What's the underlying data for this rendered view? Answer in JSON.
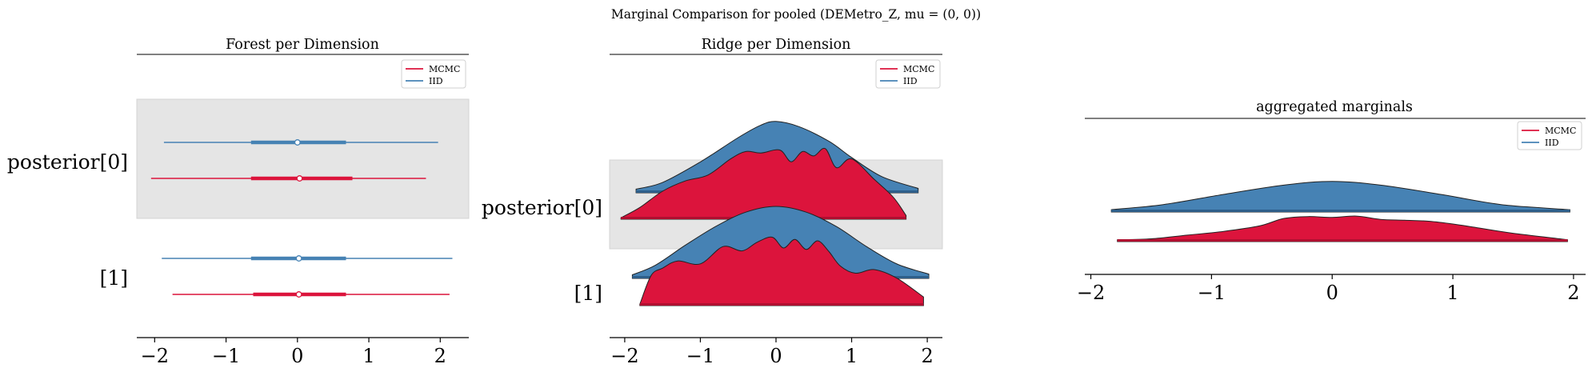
{
  "suptitle": "Marginal Comparison for pooled (DEMetro_Z, mu = (0, 0))",
  "colors": {
    "mcmc": "#dc143c",
    "iid": "#4682b4",
    "shade": "#e5e5e5",
    "axis": "#000000"
  },
  "legend": {
    "items": [
      "MCMC",
      "IID"
    ]
  },
  "chart_data": [
    {
      "type": "forest",
      "title": "Forest per Dimension",
      "xlim": [
        -2.25,
        2.4
      ],
      "ticks": [
        -2,
        -1,
        0,
        1,
        2
      ],
      "tick_labels": [
        "−2",
        "−1",
        "0",
        "1",
        "2"
      ],
      "legend_position": "top-right",
      "labels": [
        "posterior[0]",
        "[1]"
      ],
      "rows": [
        {
          "label": "posterior[0]",
          "iid": {
            "lo": -1.87,
            "q1": -0.65,
            "median": 0.0,
            "q3": 0.68,
            "hi": 1.97
          },
          "mcmc": {
            "lo": -2.05,
            "q1": -0.65,
            "median": 0.03,
            "q3": 0.77,
            "hi": 1.8
          }
        },
        {
          "label": "[1]",
          "iid": {
            "lo": -1.9,
            "q1": -0.65,
            "median": 0.02,
            "q3": 0.68,
            "hi": 2.17
          },
          "mcmc": {
            "lo": -1.75,
            "q1": -0.62,
            "median": 0.02,
            "q3": 0.68,
            "hi": 2.13
          }
        }
      ]
    },
    {
      "type": "ridge",
      "title": "Ridge per Dimension",
      "xlim": [
        -2.2,
        2.2
      ],
      "ticks": [
        -2,
        -1,
        0,
        1,
        2
      ],
      "tick_labels": [
        "−2",
        "−1",
        "0",
        "1",
        "2"
      ],
      "legend_position": "top-right",
      "rows": [
        {
          "label": "posterior[0]",
          "iid": {
            "x": [
              -1.85,
              -1.5,
              -1.0,
              -0.5,
              -0.2,
              0.0,
              0.3,
              0.7,
              1.0,
              1.4,
              1.88
            ],
            "density": [
              0.05,
              0.14,
              0.42,
              0.75,
              0.92,
              0.97,
              0.9,
              0.7,
              0.48,
              0.22,
              0.06
            ]
          },
          "mcmc": {
            "x": [
              -2.05,
              -1.8,
              -1.5,
              -1.2,
              -0.9,
              -0.6,
              -0.4,
              -0.2,
              0.05,
              0.2,
              0.35,
              0.5,
              0.65,
              0.8,
              1.0,
              1.3,
              1.55,
              1.72
            ],
            "density": [
              0.02,
              0.16,
              0.38,
              0.52,
              0.6,
              0.82,
              0.92,
              0.9,
              0.94,
              0.78,
              0.92,
              0.86,
              0.96,
              0.7,
              0.82,
              0.54,
              0.3,
              0.05
            ]
          }
        },
        {
          "label": "[1]",
          "iid": {
            "x": [
              -1.9,
              -1.6,
              -1.2,
              -0.8,
              -0.4,
              0.0,
              0.4,
              0.8,
              1.2,
              1.6,
              2.02
            ],
            "density": [
              0.05,
              0.18,
              0.46,
              0.72,
              0.92,
              1.0,
              0.92,
              0.72,
              0.44,
              0.2,
              0.06
            ]
          },
          "mcmc": {
            "x": [
              -1.8,
              -1.65,
              -1.5,
              -1.3,
              -1.0,
              -0.7,
              -0.45,
              -0.25,
              -0.05,
              0.1,
              0.25,
              0.4,
              0.55,
              0.7,
              0.85,
              1.05,
              1.3,
              1.6,
              1.95
            ],
            "density": [
              0.02,
              0.42,
              0.52,
              0.62,
              0.58,
              0.82,
              0.76,
              0.88,
              0.95,
              0.8,
              0.92,
              0.78,
              0.9,
              0.75,
              0.55,
              0.45,
              0.5,
              0.38,
              0.12
            ]
          }
        }
      ]
    },
    {
      "type": "ridge",
      "title": "aggregated marginals",
      "xlim": [
        -2.05,
        2.1
      ],
      "ticks": [
        -2,
        -1,
        0,
        1,
        2
      ],
      "tick_labels": [
        "−2",
        "−1",
        "0",
        "1",
        "2"
      ],
      "legend_position": "top-right",
      "series": [
        {
          "name": "IID",
          "x": [
            -1.83,
            -1.4,
            -0.9,
            -0.4,
            0.0,
            0.4,
            0.9,
            1.4,
            1.97
          ],
          "density": [
            0.05,
            0.16,
            0.38,
            0.58,
            0.66,
            0.58,
            0.38,
            0.16,
            0.05
          ]
        },
        {
          "name": "MCMC",
          "x": [
            -1.78,
            -1.5,
            -1.2,
            -0.9,
            -0.6,
            -0.4,
            -0.2,
            0.0,
            0.2,
            0.4,
            0.6,
            0.8,
            1.0,
            1.2,
            1.5,
            1.95
          ],
          "density": [
            0.04,
            0.06,
            0.14,
            0.22,
            0.34,
            0.5,
            0.54,
            0.52,
            0.55,
            0.48,
            0.46,
            0.44,
            0.38,
            0.3,
            0.18,
            0.04
          ]
        }
      ]
    }
  ]
}
